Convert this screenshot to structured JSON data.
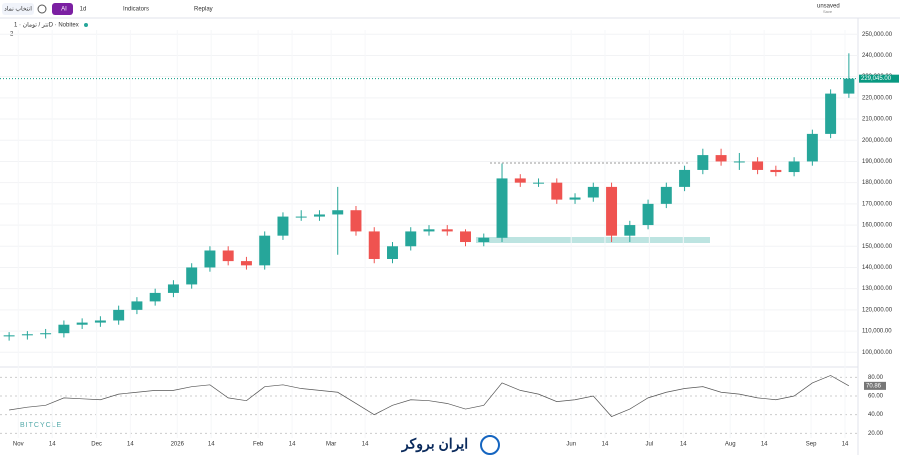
{
  "toolbar": {
    "symbol_search": "انتخاب نماد",
    "ai": "AI",
    "interval": "1d",
    "indicators": "Indicators",
    "replay": "Replay",
    "layout_name": "unsaved",
    "layout_status": "Save"
  },
  "legend": {
    "symbol": "تتر / تومان · 1D · Nobitex",
    "indicator_count": "2"
  },
  "watermark": {
    "brand": "BITCYCLE",
    "logo_text": "ایران بروکر"
  },
  "chart_data": {
    "type": "candlestick",
    "series": [
      {
        "name": "تتر / تومان",
        "up_color": "#26a69a",
        "down_color": "#ef5350",
        "open": [
          107500,
          108000,
          108500,
          109000,
          113000,
          114000,
          115000,
          120000,
          124000,
          128000,
          132000,
          140000,
          148000,
          143000,
          141000,
          155000,
          164000,
          164000,
          165000,
          167000,
          157000,
          144000,
          150000,
          157000,
          158000,
          157000,
          152000,
          154000,
          182000,
          180000,
          180000,
          172000,
          173000,
          178000,
          155000,
          160000,
          170000,
          178000,
          186000,
          193000,
          190000,
          190000,
          186000,
          185000,
          190000,
          203000,
          222000
        ],
        "high": [
          109500,
          110000,
          111000,
          115000,
          116000,
          117000,
          122000,
          126000,
          130000,
          134000,
          142000,
          150000,
          150000,
          145000,
          157000,
          166000,
          167000,
          167000,
          178000,
          169000,
          159000,
          152000,
          159000,
          160000,
          160000,
          158000,
          156000,
          189000,
          184000,
          182000,
          182000,
          175000,
          180000,
          180000,
          162000,
          172000,
          180000,
          188000,
          196000,
          196000,
          194000,
          192000,
          188000,
          192000,
          205000,
          224000,
          241000
        ],
        "low": [
          105500,
          106000,
          106500,
          107000,
          111000,
          112000,
          113000,
          118000,
          122000,
          126000,
          130000,
          138000,
          141000,
          139000,
          139000,
          153000,
          162000,
          162000,
          146000,
          155000,
          142000,
          142000,
          148000,
          155000,
          155000,
          150000,
          150000,
          152000,
          178000,
          178000,
          170000,
          170000,
          171000,
          152000,
          152000,
          158000,
          168000,
          176000,
          184000,
          188000,
          186000,
          184000,
          183000,
          183000,
          188000,
          201000,
          220000
        ],
        "close": [
          108000,
          108500,
          109000,
          113000,
          114000,
          115000,
          120000,
          124000,
          128000,
          132000,
          140000,
          148000,
          143000,
          141000,
          155000,
          164000,
          164000,
          165000,
          167000,
          157000,
          144000,
          150000,
          157000,
          158000,
          157000,
          152000,
          154000,
          182000,
          180000,
          180000,
          172000,
          173000,
          178000,
          155000,
          160000,
          170000,
          178000,
          186000,
          193000,
          190000,
          190000,
          186000,
          185000,
          190000,
          203000,
          222000,
          229045
        ]
      }
    ],
    "current_price": {
      "value": 229045,
      "label": "229,045.00",
      "color": "#089981"
    },
    "xlim": [
      0,
      47
    ],
    "xticks": [
      {
        "value": 1,
        "label": "Nov"
      },
      {
        "value": 2.86,
        "label": "14"
      },
      {
        "value": 5.29,
        "label": "Dec"
      },
      {
        "value": 7.14,
        "label": "14"
      },
      {
        "value": 9.71,
        "label": "2026"
      },
      {
        "value": 11.57,
        "label": "14"
      },
      {
        "value": 14.14,
        "label": "Feb"
      },
      {
        "value": 16,
        "label": "14"
      },
      {
        "value": 18.14,
        "label": "Mar"
      },
      {
        "value": 20,
        "label": "14"
      },
      {
        "value": 31.29,
        "label": "Jun"
      },
      {
        "value": 33.14,
        "label": "14"
      },
      {
        "value": 35.57,
        "label": "Jul"
      },
      {
        "value": 37.43,
        "label": "14"
      },
      {
        "value": 40,
        "label": "Aug"
      },
      {
        "value": 41.86,
        "label": "14"
      },
      {
        "value": 44.43,
        "label": "Sep"
      },
      {
        "value": 46.29,
        "label": "14"
      }
    ],
    "ylim": [
      94000,
      252000
    ],
    "yticks": [
      {
        "value": 100000,
        "label": "100,000.00"
      },
      {
        "value": 110000,
        "label": "110,000.00"
      },
      {
        "value": 120000,
        "label": "120,000.00"
      },
      {
        "value": 130000,
        "label": "130,000.00"
      },
      {
        "value": 140000,
        "label": "140,000.00"
      },
      {
        "value": 150000,
        "label": "150,000.00"
      },
      {
        "value": 160000,
        "label": "160,000.00"
      },
      {
        "value": 170000,
        "label": "170,000.00"
      },
      {
        "value": 180000,
        "label": "180,000.00"
      },
      {
        "value": 190000,
        "label": "190,000.00"
      },
      {
        "value": 200000,
        "label": "200,000.00"
      },
      {
        "value": 210000,
        "label": "210,000.00"
      },
      {
        "value": 220000,
        "label": "220,000.00"
      },
      {
        "value": 230000,
        "label": "230,000.00"
      },
      {
        "value": 240000,
        "label": "240,000.00"
      },
      {
        "value": 250000,
        "label": "250,000.00"
      }
    ],
    "rsi": {
      "color": "#555555",
      "label_color": "#777777",
      "values": [
        45,
        48,
        50,
        58,
        57,
        56,
        62,
        64,
        66,
        66,
        70,
        72,
        58,
        55,
        70,
        72,
        68,
        66,
        64,
        52,
        40,
        50,
        56,
        55,
        52,
        46,
        50,
        74,
        66,
        62,
        54,
        56,
        60,
        38,
        46,
        58,
        64,
        68,
        70,
        64,
        62,
        58,
        56,
        60,
        74,
        82,
        70.86
      ],
      "ylim": [
        15,
        90
      ],
      "yticks": [
        {
          "value": 20,
          "label": "20.00"
        },
        {
          "value": 40,
          "label": "40.00"
        },
        {
          "value": 60,
          "label": "60.00"
        },
        {
          "value": 80,
          "label": "80.00"
        }
      ]
    }
  }
}
